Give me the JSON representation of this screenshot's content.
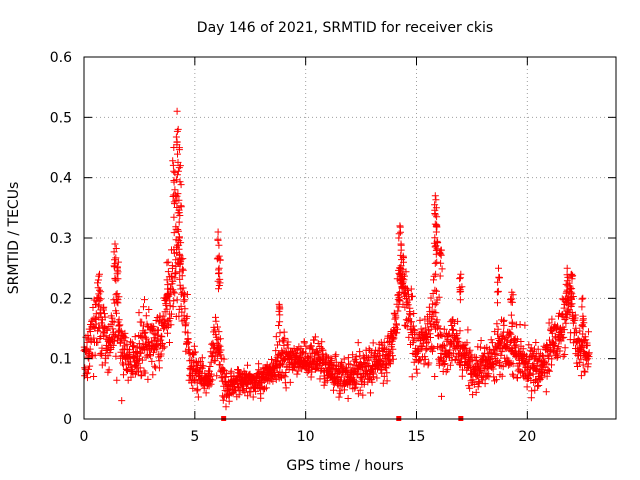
{
  "chart_data": {
    "type": "scatter",
    "title": "Day 146 of 2021, SRMTID for receiver ckis",
    "xlabel": "GPS time / hours",
    "ylabel": "SRMTID / TECUs",
    "xlim": [
      0,
      24
    ],
    "ylim": [
      0,
      0.6
    ],
    "xticks": [
      0,
      5,
      10,
      15,
      20
    ],
    "xtick_labels": [
      "0",
      "5",
      "10",
      "15",
      "20"
    ],
    "yticks": [
      0,
      0.1,
      0.2,
      0.3,
      0.4,
      0.5,
      0.6
    ],
    "ytick_labels": [
      "0",
      "0.1",
      "0.2",
      "0.3",
      "0.4",
      "0.5",
      "0.6"
    ],
    "grid": true,
    "marker": "+",
    "color": "#ff0000",
    "series": [
      {
        "name": "SRMTID",
        "envelope": [
          [
            0.0,
            0.1,
            0.04
          ],
          [
            0.3,
            0.12,
            0.05
          ],
          [
            0.6,
            0.17,
            0.06
          ],
          [
            0.9,
            0.13,
            0.05
          ],
          [
            1.2,
            0.12,
            0.04
          ],
          [
            1.4,
            0.2,
            0.07
          ],
          [
            1.7,
            0.12,
            0.04
          ],
          [
            2.0,
            0.09,
            0.03
          ],
          [
            2.4,
            0.11,
            0.04
          ],
          [
            2.8,
            0.14,
            0.05
          ],
          [
            3.2,
            0.12,
            0.04
          ],
          [
            3.6,
            0.15,
            0.05
          ],
          [
            3.9,
            0.19,
            0.06
          ],
          [
            4.2,
            0.28,
            0.09
          ],
          [
            4.5,
            0.2,
            0.06
          ],
          [
            4.8,
            0.09,
            0.04
          ],
          [
            5.2,
            0.08,
            0.03
          ],
          [
            5.6,
            0.06,
            0.02
          ],
          [
            6.0,
            0.13,
            0.05
          ],
          [
            6.4,
            0.05,
            0.02
          ],
          [
            7.0,
            0.06,
            0.02
          ],
          [
            7.6,
            0.06,
            0.02
          ],
          [
            8.2,
            0.07,
            0.02
          ],
          [
            8.8,
            0.1,
            0.04
          ],
          [
            9.4,
            0.09,
            0.03
          ],
          [
            10.0,
            0.1,
            0.03
          ],
          [
            10.6,
            0.1,
            0.03
          ],
          [
            11.2,
            0.08,
            0.03
          ],
          [
            11.8,
            0.07,
            0.03
          ],
          [
            12.4,
            0.08,
            0.03
          ],
          [
            13.0,
            0.09,
            0.03
          ],
          [
            13.6,
            0.1,
            0.03
          ],
          [
            14.0,
            0.13,
            0.04
          ],
          [
            14.3,
            0.25,
            0.04
          ],
          [
            14.6,
            0.17,
            0.05
          ],
          [
            15.0,
            0.12,
            0.04
          ],
          [
            15.4,
            0.13,
            0.04
          ],
          [
            15.8,
            0.18,
            0.07
          ],
          [
            16.2,
            0.1,
            0.03
          ],
          [
            16.6,
            0.13,
            0.04
          ],
          [
            17.0,
            0.11,
            0.03
          ],
          [
            17.6,
            0.08,
            0.03
          ],
          [
            18.2,
            0.09,
            0.03
          ],
          [
            18.8,
            0.13,
            0.04
          ],
          [
            19.4,
            0.12,
            0.04
          ],
          [
            20.0,
            0.09,
            0.03
          ],
          [
            20.6,
            0.08,
            0.03
          ],
          [
            21.0,
            0.12,
            0.04
          ],
          [
            21.5,
            0.14,
            0.04
          ],
          [
            21.9,
            0.19,
            0.04
          ],
          [
            22.3,
            0.12,
            0.04
          ],
          [
            22.8,
            0.11,
            0.03
          ]
        ],
        "peaks": [
          [
            0.7,
            0.24
          ],
          [
            1.4,
            0.29
          ],
          [
            1.55,
            0.26
          ],
          [
            3.8,
            0.26
          ],
          [
            4.05,
            0.45
          ],
          [
            4.2,
            0.51
          ],
          [
            4.25,
            0.48
          ],
          [
            4.35,
            0.42
          ],
          [
            4.1,
            0.38
          ],
          [
            4.3,
            0.3
          ],
          [
            6.05,
            0.31
          ],
          [
            6.1,
            0.27
          ],
          [
            8.8,
            0.19
          ],
          [
            14.25,
            0.32
          ],
          [
            14.3,
            0.29
          ],
          [
            14.4,
            0.27
          ],
          [
            15.85,
            0.37
          ],
          [
            15.9,
            0.35
          ],
          [
            15.9,
            0.31
          ],
          [
            16.1,
            0.28
          ],
          [
            17.0,
            0.24
          ],
          [
            18.7,
            0.25
          ],
          [
            19.3,
            0.21
          ],
          [
            21.8,
            0.25
          ],
          [
            22.0,
            0.24
          ],
          [
            22.5,
            0.2
          ]
        ]
      }
    ],
    "axis_markers_x": [
      6.3,
      14.2,
      17.0
    ]
  }
}
